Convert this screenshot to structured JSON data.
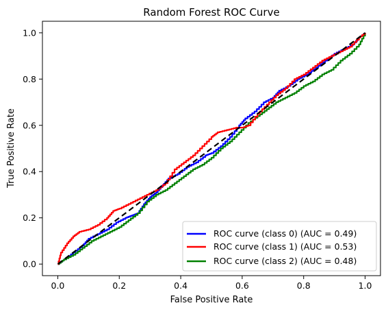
{
  "chart_data": {
    "type": "line",
    "title": "Random Forest ROC Curve",
    "xlabel": "False Positive Rate",
    "ylabel": "True Positive Rate",
    "xlim": [
      -0.05,
      1.05
    ],
    "ylim": [
      -0.05,
      1.05
    ],
    "xticks": [
      "0.0",
      "0.2",
      "0.4",
      "0.6",
      "0.8",
      "1.0"
    ],
    "yticks": [
      "0.0",
      "0.2",
      "0.4",
      "0.6",
      "0.8",
      "1.0"
    ],
    "grid": false,
    "legend_position": "lower-right",
    "series": [
      {
        "name": "ROC curve (class 0) (AUC = 0.49)",
        "color": "#0000ff",
        "x": [
          0,
          0.02,
          0.05,
          0.08,
          0.1,
          0.13,
          0.16,
          0.19,
          0.22,
          0.24,
          0.26,
          0.28,
          0.3,
          0.32,
          0.34,
          0.36,
          0.39,
          0.42,
          0.45,
          0.48,
          0.5,
          0.53,
          0.56,
          0.59,
          0.61,
          0.64,
          0.67,
          0.7,
          0.72,
          0.75,
          0.78,
          0.81,
          0.84,
          0.87,
          0.9,
          0.93,
          0.96,
          0.98,
          1.0
        ],
        "y": [
          0,
          0.02,
          0.05,
          0.08,
          0.11,
          0.13,
          0.15,
          0.18,
          0.2,
          0.21,
          0.22,
          0.26,
          0.29,
          0.31,
          0.34,
          0.37,
          0.39,
          0.42,
          0.44,
          0.47,
          0.48,
          0.51,
          0.55,
          0.6,
          0.63,
          0.66,
          0.7,
          0.72,
          0.75,
          0.77,
          0.8,
          0.82,
          0.85,
          0.88,
          0.91,
          0.93,
          0.95,
          0.98,
          1.0
        ]
      },
      {
        "name": "ROC curve (class 1) (AUC = 0.53)",
        "color": "#ff0000",
        "x": [
          0,
          0.01,
          0.03,
          0.05,
          0.07,
          0.1,
          0.13,
          0.16,
          0.18,
          0.2,
          0.23,
          0.26,
          0.29,
          0.32,
          0.35,
          0.38,
          0.41,
          0.44,
          0.47,
          0.5,
          0.52,
          0.55,
          0.58,
          0.6,
          0.62,
          0.65,
          0.68,
          0.71,
          0.74,
          0.77,
          0.8,
          0.83,
          0.86,
          0.89,
          0.92,
          0.95,
          0.98,
          1.0
        ],
        "y": [
          0,
          0.05,
          0.09,
          0.12,
          0.14,
          0.15,
          0.17,
          0.2,
          0.23,
          0.24,
          0.26,
          0.28,
          0.3,
          0.32,
          0.35,
          0.41,
          0.44,
          0.47,
          0.51,
          0.55,
          0.57,
          0.58,
          0.59,
          0.59,
          0.6,
          0.65,
          0.69,
          0.73,
          0.76,
          0.8,
          0.82,
          0.85,
          0.88,
          0.9,
          0.92,
          0.94,
          0.98,
          1.0
        ]
      },
      {
        "name": "ROC curve (class 2) (AUC = 0.48)",
        "color": "#008000",
        "x": [
          0,
          0.02,
          0.05,
          0.08,
          0.11,
          0.14,
          0.17,
          0.2,
          0.23,
          0.26,
          0.29,
          0.32,
          0.35,
          0.38,
          0.41,
          0.44,
          0.47,
          0.5,
          0.53,
          0.56,
          0.59,
          0.62,
          0.65,
          0.68,
          0.71,
          0.74,
          0.77,
          0.8,
          0.83,
          0.86,
          0.89,
          0.92,
          0.95,
          0.98,
          1.0
        ],
        "y": [
          0,
          0.02,
          0.04,
          0.07,
          0.1,
          0.12,
          0.14,
          0.16,
          0.19,
          0.22,
          0.27,
          0.3,
          0.32,
          0.35,
          0.38,
          0.41,
          0.43,
          0.46,
          0.5,
          0.53,
          0.57,
          0.61,
          0.64,
          0.67,
          0.7,
          0.72,
          0.74,
          0.77,
          0.79,
          0.82,
          0.84,
          0.88,
          0.91,
          0.95,
          1.0
        ]
      }
    ],
    "reference_line": {
      "style": "dashed",
      "color": "#000000",
      "x": [
        0,
        1
      ],
      "y": [
        0,
        1
      ]
    }
  }
}
